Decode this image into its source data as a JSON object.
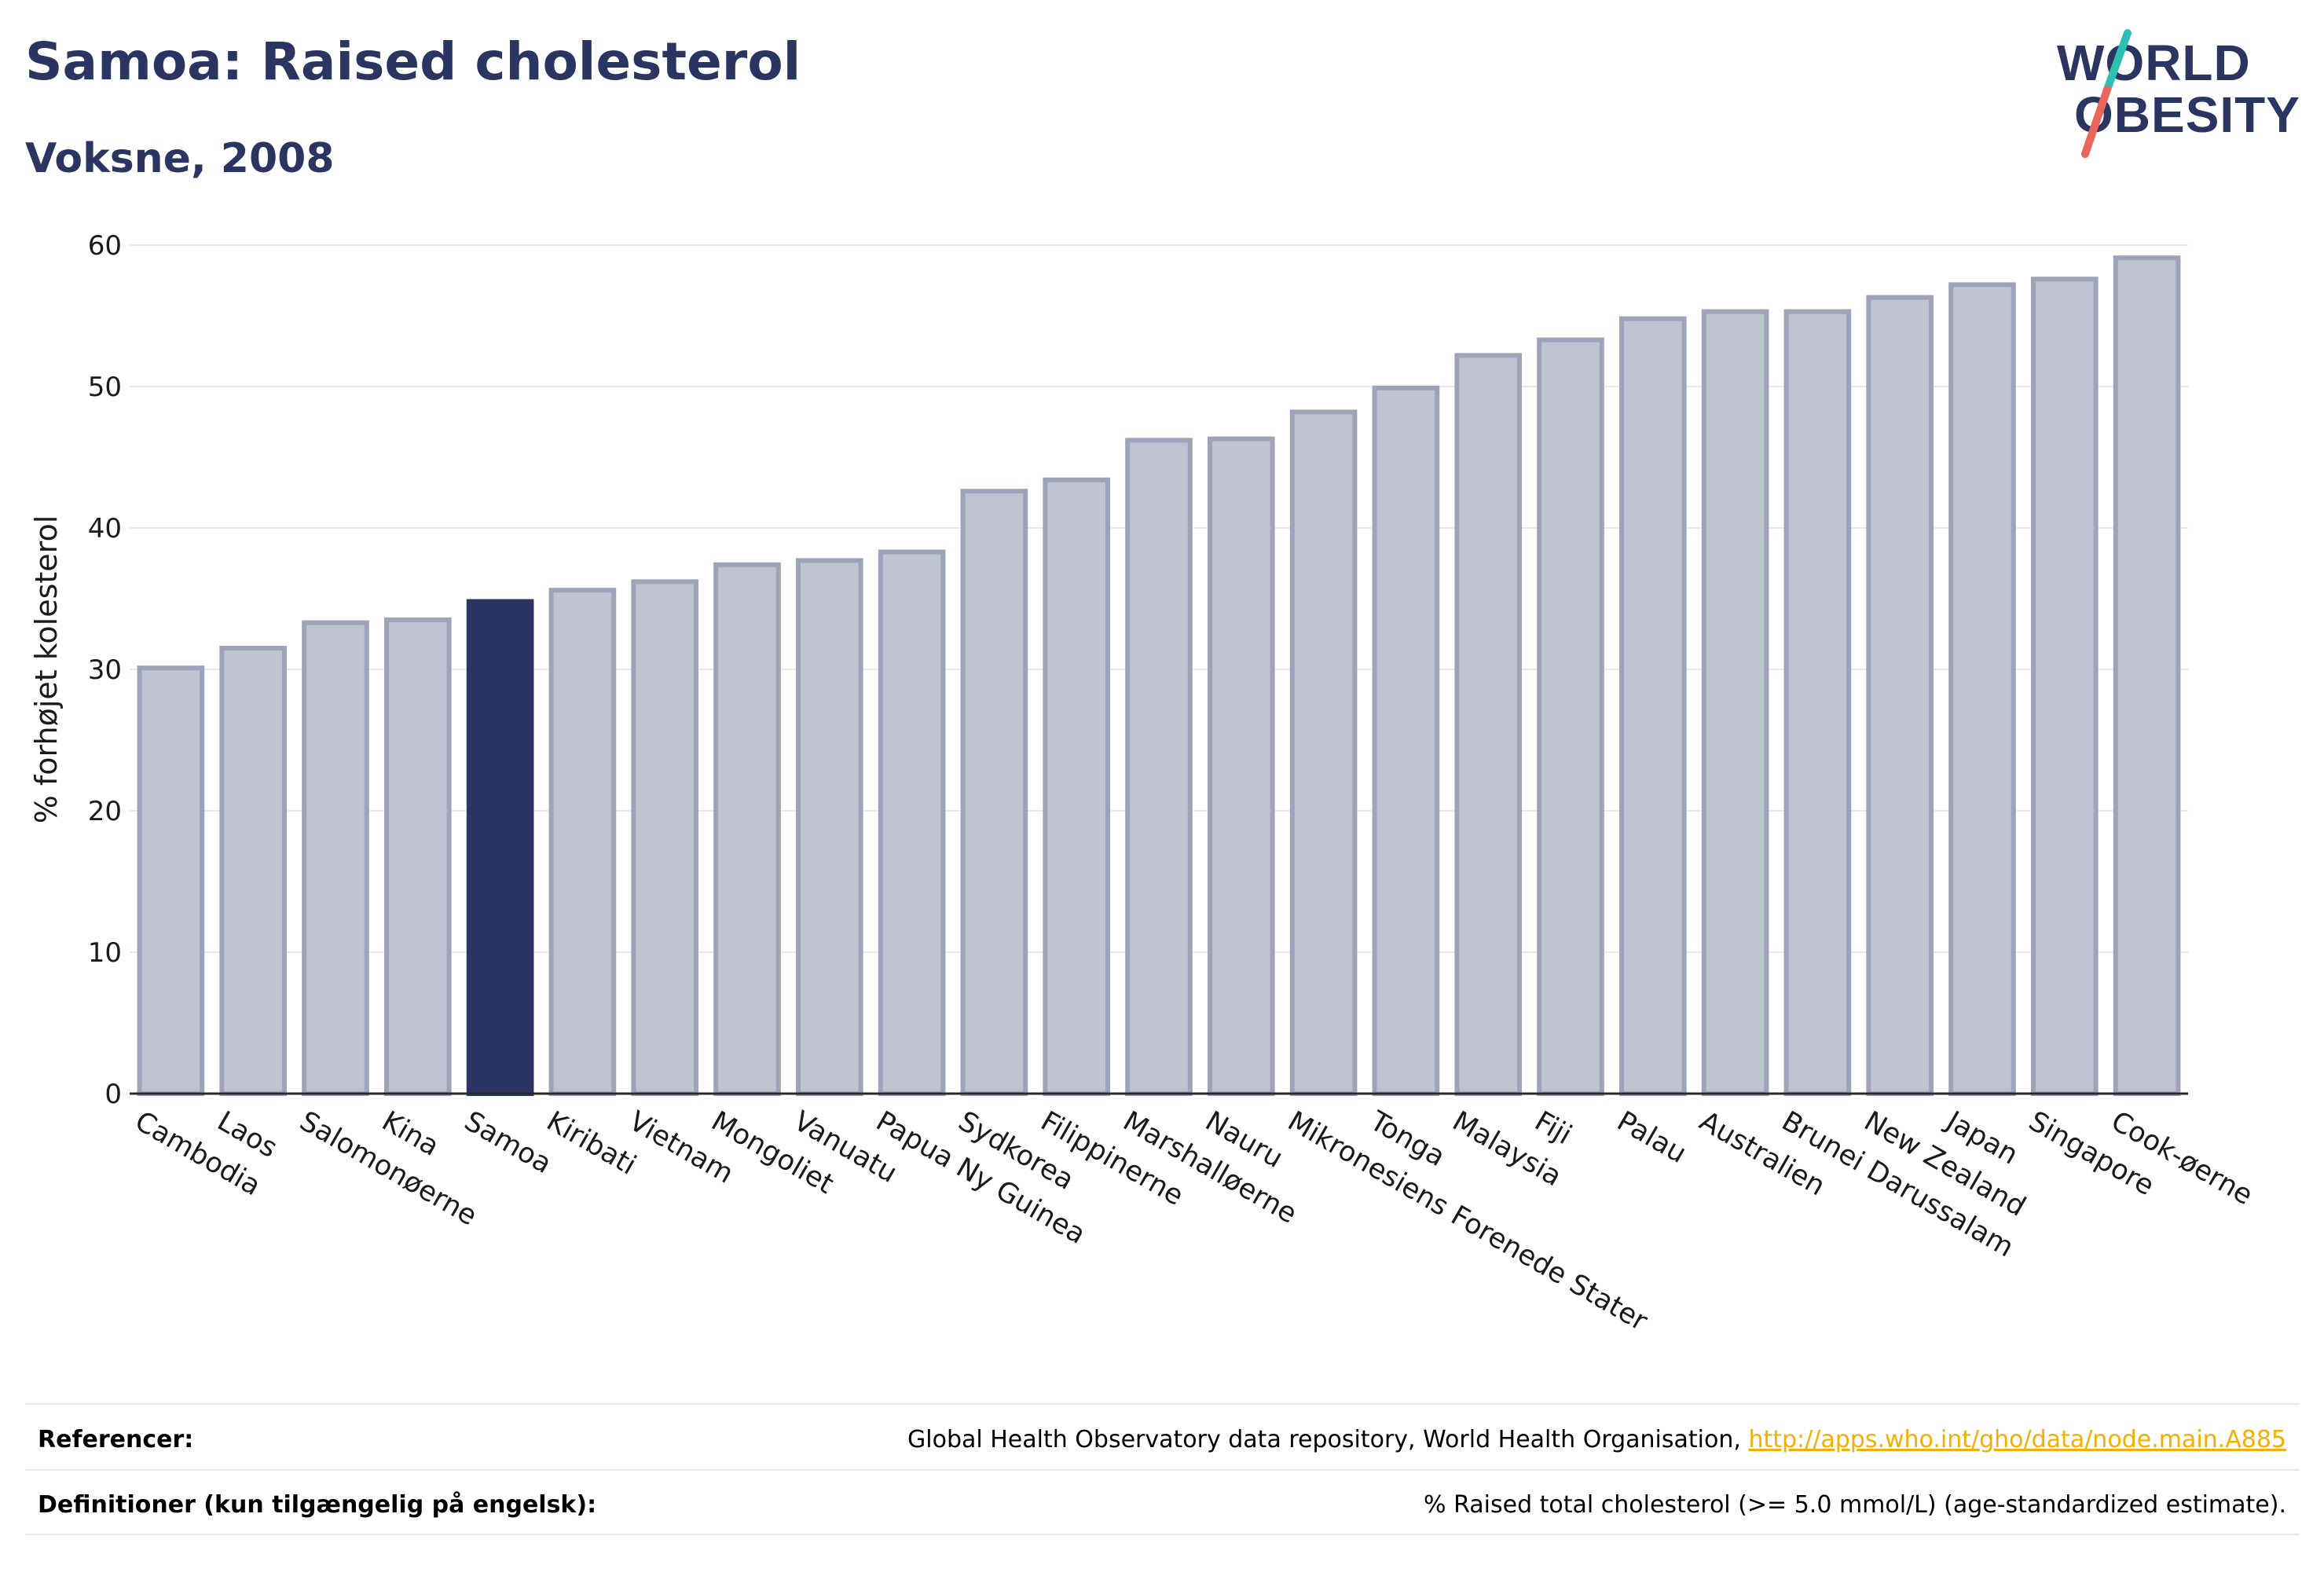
{
  "header": {
    "title": "Samoa: Raised cholesterol",
    "subtitle": "Voksne, 2008"
  },
  "logo": {
    "line1": "WORLD",
    "line2": "OBESITY"
  },
  "colors": {
    "highlight": "#2a3561",
    "bar_fill": "#bfc3cf",
    "bar_stroke": "#9da3b8",
    "title": "#2a3561",
    "link": "#f4b000",
    "logo_teal": "#2dbfb4",
    "logo_red": "#e8665a"
  },
  "chart_data": {
    "type": "bar",
    "title": "Samoa: Raised cholesterol",
    "subtitle": "Voksne, 2008",
    "ylabel": "% forhøjet kolesterol",
    "xlabel": "",
    "ylim": [
      0,
      60
    ],
    "yticks": [
      0,
      10,
      20,
      30,
      40,
      50,
      60
    ],
    "grid": true,
    "highlight": "Samoa",
    "categories": [
      "Cambodia",
      "Laos",
      "Salomonøerne",
      "Kina",
      "Samoa",
      "Kiribati",
      "Vietnam",
      "Mongoliet",
      "Vanuatu",
      "Papua Ny Guinea",
      "Sydkorea",
      "Filippinerne",
      "Marshalløerne",
      "Nauru",
      "Mikronesiens Forenede Stater",
      "Tonga",
      "Malaysia",
      "Fiji",
      "Palau",
      "Australien",
      "Brunei Darussalam",
      "New Zealand",
      "Japan",
      "Singapore",
      "Cook-øerne"
    ],
    "values": [
      30.1,
      31.5,
      33.3,
      33.5,
      34.8,
      35.6,
      36.2,
      37.4,
      37.7,
      38.3,
      42.6,
      43.4,
      46.2,
      46.3,
      48.2,
      49.9,
      52.2,
      53.3,
      54.8,
      55.3,
      55.3,
      56.3,
      57.2,
      57.6,
      59.1
    ]
  },
  "footer": {
    "references_label": "Referencer:",
    "references_text": "Global Health Observatory data repository, World Health Organisation, ",
    "references_link": "http://apps.who.int/gho/data/node.main.A885",
    "definitions_label": "Definitioner (kun tilgængelig på engelsk):",
    "definitions_text": "% Raised total cholesterol (>= 5.0 mmol/L) (age-standardized estimate)."
  }
}
